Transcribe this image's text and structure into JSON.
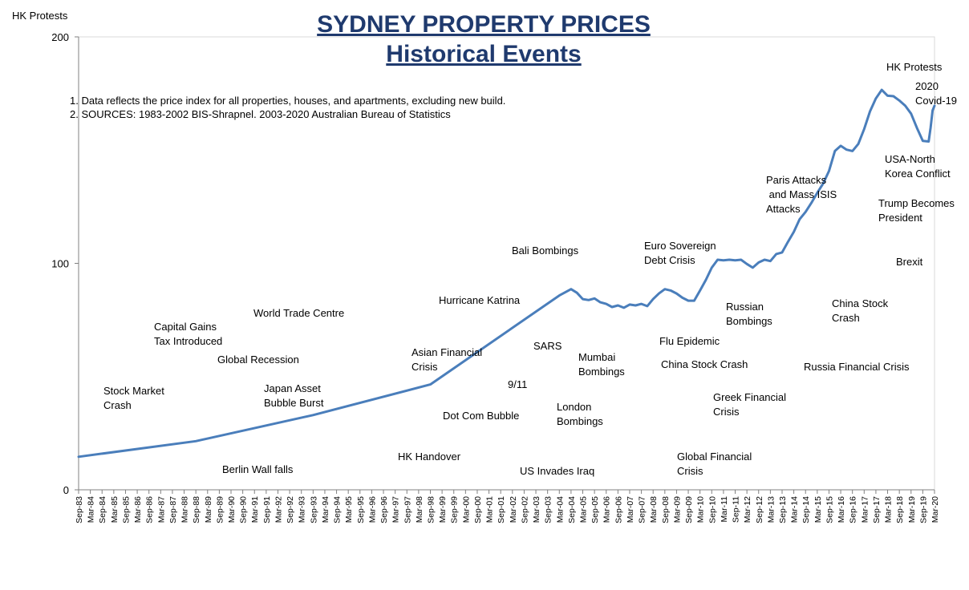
{
  "chart_data": {
    "type": "line",
    "title": "SYDNEY PROPERTY PRICES",
    "subtitle": "Historical Events",
    "ylabel": "HK Protests",
    "xlabel": "",
    "ylim": [
      0,
      200
    ],
    "y_ticks": [
      "0",
      "100",
      "200"
    ],
    "grid": false,
    "legend": "none",
    "line_color": "#4a7ebb",
    "title_color": "#1f3a6e",
    "notes": [
      "1. Data reflects the price index for all properties, houses, and apartments, excluding new build.",
      "2.  SOURCES: 1983-2002  BIS-Shrapnel. 2003-2020  Australian Bureau of Statistics"
    ],
    "categories": [
      "Sep-83",
      "Mar-84",
      "Sep-84",
      "Mar-85",
      "Sep-85",
      "Mar-86",
      "Sep-86",
      "Mar-87",
      "Sep-87",
      "Mar-88",
      "Sep-88",
      "Mar-89",
      "Sep-89",
      "Mar-90",
      "Sep-90",
      "Mar-91",
      "Sep-91",
      "Mar-92",
      "Sep-92",
      "Mar-93",
      "Sep-93",
      "Mar-94",
      "Sep-94",
      "Mar-95",
      "Sep-95",
      "Mar-96",
      "Sep-96",
      "Mar-97",
      "Sep-97",
      "Mar-98",
      "Sep-98",
      "Mar-99",
      "Sep-99",
      "Mar-00",
      "Sep-00",
      "Mar-01",
      "Sep-01",
      "Mar-02",
      "Sep-02",
      "Mar-03",
      "Sep-03",
      "Mar-04",
      "Sep-04",
      "Mar-05",
      "Sep-05",
      "Mar-06",
      "Sep-06",
      "Mar-07",
      "Sep-07",
      "Mar-08",
      "Sep-08",
      "Mar-09",
      "Sep-09",
      "Mar-10",
      "Sep-10",
      "Mar-11",
      "Sep-11",
      "Mar-12",
      "Sep-12",
      "Mar-13",
      "Sep-13",
      "Mar-14",
      "Sep-14",
      "Mar-15",
      "Sep-15",
      "Mar-16",
      "Sep-16",
      "Mar-17",
      "Sep-17",
      "Mar-18",
      "Sep-18",
      "Mar-19",
      "Sep-19",
      "Mar-20"
    ],
    "series": [
      {
        "name": "",
        "points": [
          {
            "x": "Sep-83",
            "y": 14.6
          },
          {
            "x": "Sep-88",
            "y": 21.5
          },
          {
            "x": "Sep-93",
            "y": 33.0
          },
          {
            "x": "Sep-98",
            "y": 46.5
          },
          {
            "x": "Mar-04",
            "y": 85.8
          },
          {
            "x": "Sep-04",
            "y": 88.6
          },
          {
            "x": "Dec-04",
            "y": 87.0
          },
          {
            "x": "Mar-05",
            "y": 84.2
          },
          {
            "x": "Jun-05",
            "y": 83.8
          },
          {
            "x": "Sep-05",
            "y": 84.5
          },
          {
            "x": "Dec-05",
            "y": 82.8
          },
          {
            "x": "Mar-06",
            "y": 82.1
          },
          {
            "x": "Jun-06",
            "y": 80.7
          },
          {
            "x": "Sep-06",
            "y": 81.4
          },
          {
            "x": "Dec-06",
            "y": 80.4
          },
          {
            "x": "Mar-07",
            "y": 81.8
          },
          {
            "x": "Jun-07",
            "y": 81.4
          },
          {
            "x": "Sep-07",
            "y": 82.1
          },
          {
            "x": "Dec-07",
            "y": 81.1
          },
          {
            "x": "Mar-08",
            "y": 84.2
          },
          {
            "x": "Jun-08",
            "y": 86.7
          },
          {
            "x": "Sep-08",
            "y": 88.6
          },
          {
            "x": "Dec-08",
            "y": 88.0
          },
          {
            "x": "Mar-09",
            "y": 86.7
          },
          {
            "x": "Jun-09",
            "y": 84.8
          },
          {
            "x": "Sep-09",
            "y": 83.5
          },
          {
            "x": "Dec-09",
            "y": 83.5
          },
          {
            "x": "Mar-10",
            "y": 88.0
          },
          {
            "x": "Jun-10",
            "y": 92.7
          },
          {
            "x": "Sep-10",
            "y": 98.1
          },
          {
            "x": "Dec-10",
            "y": 101.6
          },
          {
            "x": "Mar-11",
            "y": 101.3
          },
          {
            "x": "Jun-11",
            "y": 101.6
          },
          {
            "x": "Sep-11",
            "y": 101.3
          },
          {
            "x": "Dec-11",
            "y": 101.6
          },
          {
            "x": "Mar-12",
            "y": 99.7
          },
          {
            "x": "Jun-12",
            "y": 98.1
          },
          {
            "x": "Sep-12",
            "y": 100.4
          },
          {
            "x": "Dec-12",
            "y": 101.6
          },
          {
            "x": "Mar-13",
            "y": 101.0
          },
          {
            "x": "Jun-13",
            "y": 104.1
          },
          {
            "x": "Sep-13",
            "y": 104.8
          },
          {
            "x": "Dec-13",
            "y": 109.5
          },
          {
            "x": "Mar-14",
            "y": 113.9
          },
          {
            "x": "Jun-14",
            "y": 119.5
          },
          {
            "x": "Sep-14",
            "y": 122.7
          },
          {
            "x": "Dec-14",
            "y": 126.7
          },
          {
            "x": "Mar-15",
            "y": 131.1
          },
          {
            "x": "Jun-15",
            "y": 135.2
          },
          {
            "x": "Sep-15",
            "y": 140.8
          },
          {
            "x": "Dec-15",
            "y": 149.6
          },
          {
            "x": "Mar-16",
            "y": 151.9
          },
          {
            "x": "Jun-16",
            "y": 150.2
          },
          {
            "x": "Sep-16",
            "y": 149.6
          },
          {
            "x": "Dec-16",
            "y": 152.7
          },
          {
            "x": "Mar-17",
            "y": 159.3
          },
          {
            "x": "Jun-17",
            "y": 167.1
          },
          {
            "x": "Sep-17",
            "y": 172.8
          },
          {
            "x": "Dec-17",
            "y": 176.6
          },
          {
            "x": "Mar-18",
            "y": 174.0
          },
          {
            "x": "Jun-18",
            "y": 173.8
          },
          {
            "x": "Sep-18",
            "y": 171.9
          },
          {
            "x": "Dec-18",
            "y": 169.6
          },
          {
            "x": "Mar-19",
            "y": 166.1
          },
          {
            "x": "Jun-19",
            "y": 159.8
          },
          {
            "x": "Sep-19",
            "y": 154.1
          },
          {
            "x": "Dec-19",
            "y": 153.8
          },
          {
            "x": "Jan-20",
            "y": 159.8
          },
          {
            "x": "Feb-20",
            "y": 167.5
          },
          {
            "x": "Mar-20",
            "y": 169.6
          }
        ]
      }
    ],
    "annotations": [
      {
        "lines": [
          "Stock Market",
          "Crash"
        ]
      },
      {
        "lines": [
          "Capital Gains",
          "Tax Introduced"
        ]
      },
      {
        "lines": [
          "World Trade Centre"
        ]
      },
      {
        "lines": [
          "Global Recession"
        ]
      },
      {
        "lines": [
          "Japan Asset",
          "Bubble Burst"
        ]
      },
      {
        "lines": [
          "Berlin Wall falls"
        ]
      },
      {
        "lines": [
          "HK Handover"
        ]
      },
      {
        "lines": [
          "Asian Financial",
          "Crisis"
        ]
      },
      {
        "lines": [
          "Hurricane Katrina"
        ]
      },
      {
        "lines": [
          "Bali Bombings"
        ]
      },
      {
        "lines": [
          "SARS"
        ]
      },
      {
        "lines": [
          "9/11"
        ]
      },
      {
        "lines": [
          "Dot Com Bubble"
        ]
      },
      {
        "lines": [
          "US Invades Iraq"
        ]
      },
      {
        "lines": [
          "Mumbai",
          "Bombings"
        ]
      },
      {
        "lines": [
          "London",
          "Bombings"
        ]
      },
      {
        "lines": [
          "Euro Sovereign",
          "Debt Crisis"
        ]
      },
      {
        "lines": [
          "Flu Epidemic"
        ]
      },
      {
        "lines": [
          "China Stock Crash"
        ]
      },
      {
        "lines": [
          "Russian",
          "Bombings"
        ]
      },
      {
        "lines": [
          "Greek Financial",
          "Crisis"
        ]
      },
      {
        "lines": [
          "Global Financial",
          "Crisis"
        ]
      },
      {
        "lines": [
          "Paris Attacks",
          " and Mass ISIS",
          "Attacks"
        ]
      },
      {
        "lines": [
          "China Stock",
          "Crash"
        ]
      },
      {
        "lines": [
          "Russia Financial Crisis"
        ]
      },
      {
        "lines": [
          "HK Protests"
        ]
      },
      {
        "lines": [
          "2020",
          "Covid-19"
        ]
      },
      {
        "lines": [
          "USA-North",
          "Korea Conflict"
        ]
      },
      {
        "lines": [
          "Trump Becomes",
          "President"
        ]
      },
      {
        "lines": [
          "Brexit"
        ]
      }
    ]
  }
}
